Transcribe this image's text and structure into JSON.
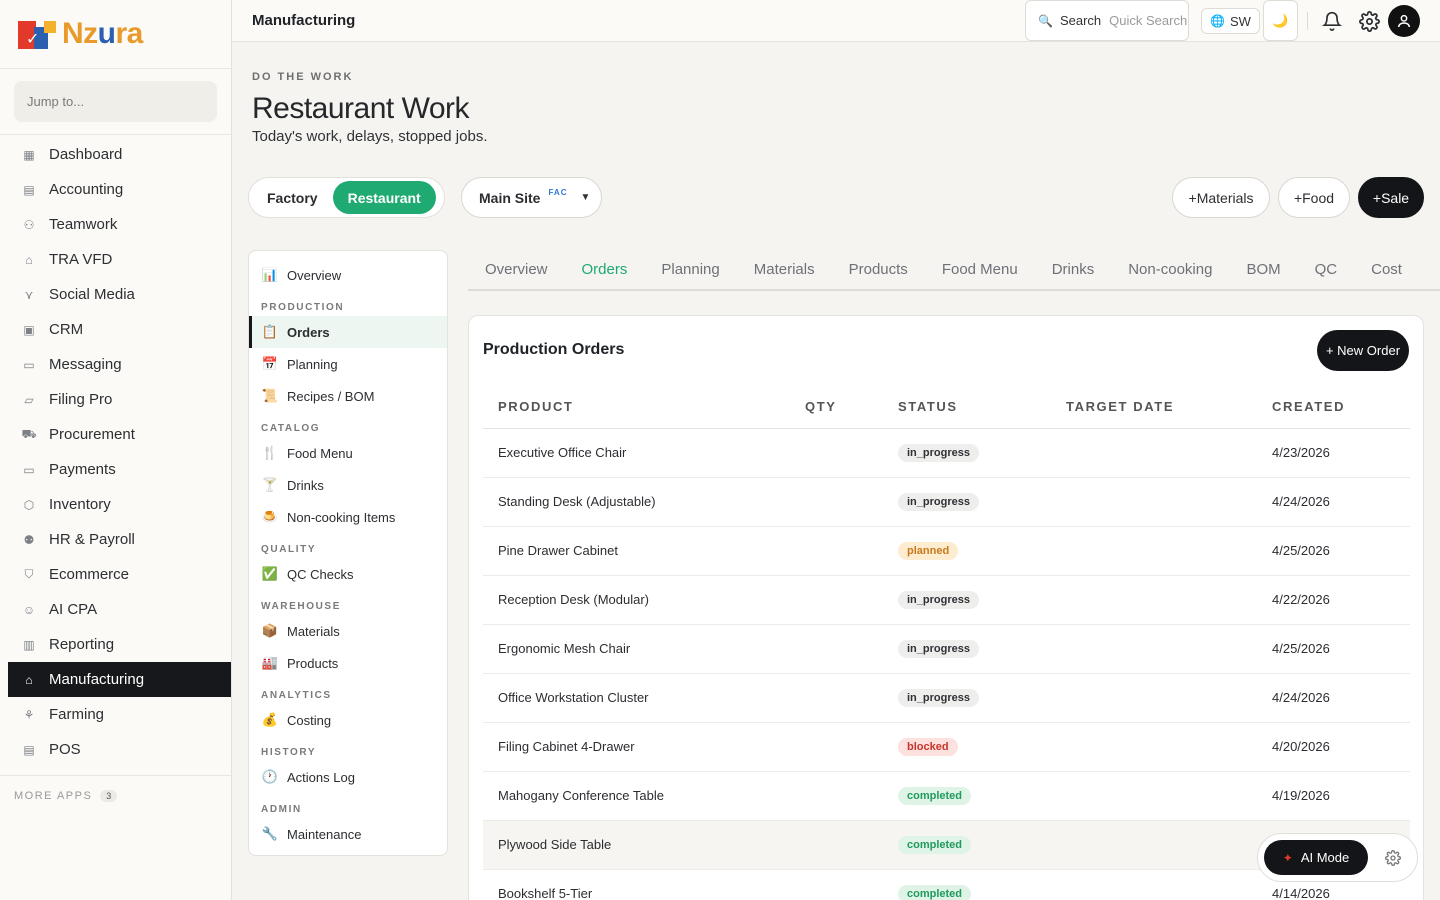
{
  "brand": {
    "logo_text_a": "Nz",
    "logo_text_u": "u",
    "logo_text_b": "ra"
  },
  "sidebar": {
    "jump_placeholder": "Jump to...",
    "items": [
      {
        "label": "Dashboard",
        "icon": "grid-icon"
      },
      {
        "label": "Accounting",
        "icon": "ledger-icon"
      },
      {
        "label": "Teamwork",
        "icon": "people-icon"
      },
      {
        "label": "TRA VFD",
        "icon": "bank-icon"
      },
      {
        "label": "Social Media",
        "icon": "share-icon"
      },
      {
        "label": "CRM",
        "icon": "contact-icon"
      },
      {
        "label": "Messaging",
        "icon": "chat-icon"
      },
      {
        "label": "Filing Pro",
        "icon": "folder-icon"
      },
      {
        "label": "Procurement",
        "icon": "cart-icon"
      },
      {
        "label": "Payments",
        "icon": "card-icon"
      },
      {
        "label": "Inventory",
        "icon": "box-icon"
      },
      {
        "label": "HR & Payroll",
        "icon": "user-icon"
      },
      {
        "label": "Ecommerce",
        "icon": "bag-icon"
      },
      {
        "label": "AI CPA",
        "icon": "robot-icon"
      },
      {
        "label": "Reporting",
        "icon": "bar-chart-icon"
      },
      {
        "label": "Manufacturing",
        "icon": "factory-icon",
        "active": true
      },
      {
        "label": "Farming",
        "icon": "plant-icon"
      },
      {
        "label": "POS",
        "icon": "receipt-icon"
      }
    ],
    "more_apps_label": "MORE APPS",
    "more_apps_count": "3"
  },
  "topbar": {
    "breadcrumb": "Manufacturing",
    "search_label": "Search",
    "search_hint": "Quick Search",
    "lang_code": "SW"
  },
  "page": {
    "eyebrow": "DO THE WORK",
    "title": "Restaurant Work",
    "subtitle": "Today's work, delays, stopped jobs.",
    "mode_options": [
      "Factory",
      "Restaurant"
    ],
    "mode_selected": "Restaurant",
    "site": {
      "label": "Main Site",
      "tag": "FAC"
    },
    "actions": [
      "+Materials",
      "+Food",
      "+Sale"
    ]
  },
  "subnav": [
    {
      "type": "item",
      "label": "Overview",
      "emoji": "📊"
    },
    {
      "type": "head",
      "label": "PRODUCTION"
    },
    {
      "type": "item",
      "label": "Orders",
      "emoji": "📋",
      "active": true
    },
    {
      "type": "item",
      "label": "Planning",
      "emoji": "📅"
    },
    {
      "type": "item",
      "label": "Recipes / BOM",
      "emoji": "📜"
    },
    {
      "type": "head",
      "label": "CATALOG"
    },
    {
      "type": "item",
      "label": "Food Menu",
      "emoji": "🍴"
    },
    {
      "type": "item",
      "label": "Drinks",
      "emoji": "🍸"
    },
    {
      "type": "item",
      "label": "Non-cooking Items",
      "emoji": "🍮"
    },
    {
      "type": "head",
      "label": "QUALITY"
    },
    {
      "type": "item",
      "label": "QC Checks",
      "emoji": "✅"
    },
    {
      "type": "head",
      "label": "WAREHOUSE"
    },
    {
      "type": "item",
      "label": "Materials",
      "emoji": "📦"
    },
    {
      "type": "item",
      "label": "Products",
      "emoji": "🏭"
    },
    {
      "type": "head",
      "label": "ANALYTICS"
    },
    {
      "type": "item",
      "label": "Costing",
      "emoji": "💰"
    },
    {
      "type": "head",
      "label": "HISTORY"
    },
    {
      "type": "item",
      "label": "Actions Log",
      "emoji": "🕐"
    },
    {
      "type": "head",
      "label": "ADMIN"
    },
    {
      "type": "item",
      "label": "Maintenance",
      "emoji": "🔧"
    }
  ],
  "tabs": [
    "Overview",
    "Orders",
    "Planning",
    "Materials",
    "Products",
    "Food Menu",
    "Drinks",
    "Non-cooking",
    "BOM",
    "QC",
    "Cost"
  ],
  "tabs_active": "Orders",
  "orders": {
    "title": "Production Orders",
    "new_button": "+ New Order",
    "columns": [
      "PRODUCT",
      "QTY",
      "STATUS",
      "TARGET DATE",
      "CREATED"
    ],
    "rows": [
      {
        "product": "Executive Office Chair",
        "qty": "",
        "status": "in_progress",
        "target": "",
        "created": "4/23/2026"
      },
      {
        "product": "Standing Desk (Adjustable)",
        "qty": "",
        "status": "in_progress",
        "target": "",
        "created": "4/24/2026"
      },
      {
        "product": "Pine Drawer Cabinet",
        "qty": "",
        "status": "planned",
        "target": "",
        "created": "4/25/2026"
      },
      {
        "product": "Reception Desk (Modular)",
        "qty": "",
        "status": "in_progress",
        "target": "",
        "created": "4/22/2026"
      },
      {
        "product": "Ergonomic Mesh Chair",
        "qty": "",
        "status": "in_progress",
        "target": "",
        "created": "4/25/2026"
      },
      {
        "product": "Office Workstation Cluster",
        "qty": "",
        "status": "in_progress",
        "target": "",
        "created": "4/24/2026"
      },
      {
        "product": "Filing Cabinet 4-Drawer",
        "qty": "",
        "status": "blocked",
        "target": "",
        "created": "4/20/2026"
      },
      {
        "product": "Mahogany Conference Table",
        "qty": "",
        "status": "completed",
        "target": "",
        "created": "4/19/2026"
      },
      {
        "product": "Plywood Side Table",
        "qty": "",
        "status": "completed",
        "target": "",
        "created": "",
        "highlight": true
      },
      {
        "product": "Bookshelf 5-Tier",
        "qty": "",
        "status": "completed",
        "target": "",
        "created": "4/14/2026"
      }
    ]
  },
  "ai": {
    "label": "AI Mode"
  },
  "colors": {
    "accent_green": "#1faa72",
    "dark": "#131518"
  }
}
